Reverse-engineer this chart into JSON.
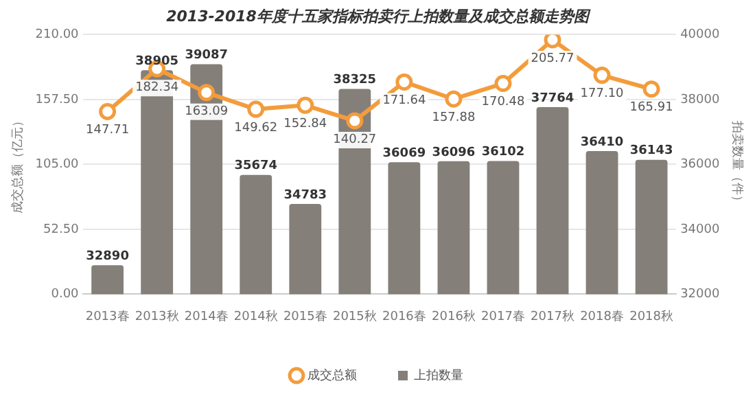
{
  "chart_data": {
    "type": "bar",
    "title": "2013-2018年度十五家指标拍卖行上拍数量及成交总额走势图",
    "ylabel": "成交总额（亿元）",
    "y2label": "拍卖数量（件）",
    "categories": [
      "2013春",
      "2013秋",
      "2014春",
      "2014秋",
      "2015春",
      "2015秋",
      "2016春",
      "2016秋",
      "2017春",
      "2017秋",
      "2018春",
      "2018秋"
    ],
    "series": [
      {
        "name": "成交总额",
        "type": "line",
        "axis": "y",
        "color": "#f39c3c",
        "values": [
          147.71,
          182.34,
          163.09,
          149.62,
          152.84,
          140.27,
          171.64,
          157.88,
          170.48,
          205.77,
          177.1,
          165.91
        ],
        "value_labels": [
          "147.71",
          "182.34",
          "163.09",
          "149.62",
          "152.84",
          "140.27",
          "171.64",
          "157.88",
          "170.48",
          "205.77",
          "177.10",
          "165.91"
        ]
      },
      {
        "name": "上拍数量",
        "type": "bar",
        "axis": "y2",
        "color": "#857f7a",
        "values": [
          32890,
          38905,
          39087,
          35674,
          34783,
          38325,
          36069,
          36096,
          36102,
          37764,
          36410,
          36143
        ],
        "value_labels": [
          "32890",
          "38905",
          "39087",
          "35674",
          "34783",
          "38325",
          "36069",
          "36096",
          "36102",
          "37764",
          "36410",
          "36143"
        ]
      }
    ],
    "ylim": [
      0,
      210
    ],
    "yticks": [
      {
        "value": 0,
        "label": "0.00"
      },
      {
        "value": 52.5,
        "label": "52.50"
      },
      {
        "value": 105,
        "label": "105.00"
      },
      {
        "value": 157.5,
        "label": "157.50"
      },
      {
        "value": 210,
        "label": "210.00"
      }
    ],
    "y2lim": [
      32000,
      40000
    ],
    "y2ticks": [
      32000,
      34000,
      36000,
      38000,
      40000
    ],
    "grid": "y",
    "legend": "bottom",
    "marker": "circle",
    "line_style": "solid"
  }
}
